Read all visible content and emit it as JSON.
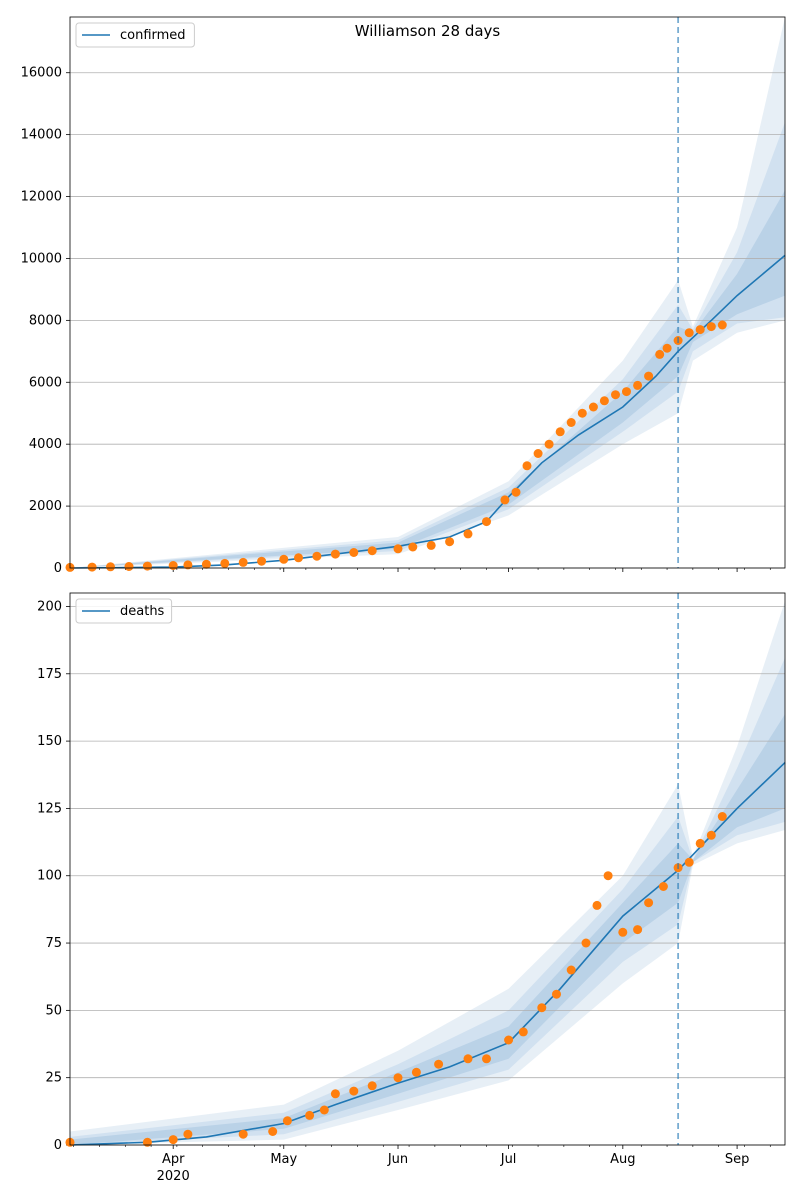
{
  "chart_data": [
    {
      "type": "line",
      "title": "Williamson 28 days",
      "legend": {
        "label": "confirmed",
        "placement": "top-left"
      },
      "ylim": [
        0,
        17800
      ],
      "yticks": [
        0,
        2000,
        4000,
        6000,
        8000,
        10000,
        12000,
        14000,
        16000
      ],
      "xlim": [
        "2020-03-04",
        "2020-09-14"
      ],
      "xticks": [
        {
          "date": "2020-04-01",
          "label": "Apr",
          "sublabel": ""
        },
        {
          "date": "2020-05-01",
          "label": "May",
          "sublabel": ""
        },
        {
          "date": "2020-06-01",
          "label": "Jun",
          "sublabel": ""
        },
        {
          "date": "2020-07-01",
          "label": "Jul",
          "sublabel": ""
        },
        {
          "date": "2020-08-01",
          "label": "Aug",
          "sublabel": ""
        },
        {
          "date": "2020-09-01",
          "label": "Sep",
          "sublabel": ""
        }
      ],
      "vline_date": "2020-08-16",
      "grid": "y",
      "series": [
        {
          "name": "confirmed",
          "color": "#1f77b4",
          "x": [
            "2020-03-04",
            "2020-04-01",
            "2020-04-15",
            "2020-05-01",
            "2020-05-15",
            "2020-06-01",
            "2020-06-15",
            "2020-06-25",
            "2020-07-01",
            "2020-07-10",
            "2020-07-20",
            "2020-08-01",
            "2020-08-10",
            "2020-08-16",
            "2020-08-25",
            "2020-09-01",
            "2020-09-14"
          ],
          "y": [
            0,
            30,
            100,
            250,
            450,
            700,
            1000,
            1500,
            2300,
            3400,
            4300,
            5200,
            6200,
            7000,
            8000,
            8800,
            10100
          ]
        }
      ],
      "bands": [
        {
          "x": [
            "2020-03-04",
            "2020-06-01",
            "2020-07-01",
            "2020-08-01",
            "2020-08-16",
            "2020-08-20",
            "2020-09-01",
            "2020-09-14"
          ],
          "lo": [
            0,
            450,
            1700,
            4000,
            5000,
            6700,
            7600,
            8000
          ],
          "hi": [
            0,
            1000,
            2800,
            6700,
            9300,
            7800,
            11000,
            17800
          ]
        },
        {
          "x": [
            "2020-03-04",
            "2020-06-01",
            "2020-07-01",
            "2020-08-01",
            "2020-08-16",
            "2020-08-20",
            "2020-09-01",
            "2020-09-14"
          ],
          "lo": [
            0,
            550,
            1900,
            4400,
            5700,
            7000,
            7900,
            8100
          ],
          "hi": [
            0,
            900,
            2600,
            6100,
            8500,
            7700,
            10200,
            14400
          ]
        },
        {
          "x": [
            "2020-03-04",
            "2020-06-01",
            "2020-07-01",
            "2020-08-01",
            "2020-08-16",
            "2020-08-20",
            "2020-09-01",
            "2020-09-14"
          ],
          "lo": [
            0,
            620,
            2050,
            4700,
            6200,
            7300,
            8200,
            8800
          ],
          "hi": [
            0,
            820,
            2450,
            5700,
            7800,
            7600,
            9500,
            12200
          ]
        }
      ],
      "observed": {
        "color": "#ff7f0e",
        "x": [
          "2020-03-04",
          "2020-03-10",
          "2020-03-15",
          "2020-03-20",
          "2020-03-25",
          "2020-04-01",
          "2020-04-05",
          "2020-04-10",
          "2020-04-15",
          "2020-04-20",
          "2020-04-25",
          "2020-05-01",
          "2020-05-05",
          "2020-05-10",
          "2020-05-15",
          "2020-05-20",
          "2020-05-25",
          "2020-06-01",
          "2020-06-05",
          "2020-06-10",
          "2020-06-15",
          "2020-06-20",
          "2020-06-25",
          "2020-06-30",
          "2020-07-03",
          "2020-07-06",
          "2020-07-09",
          "2020-07-12",
          "2020-07-15",
          "2020-07-18",
          "2020-07-21",
          "2020-07-24",
          "2020-07-27",
          "2020-07-30",
          "2020-08-02",
          "2020-08-05",
          "2020-08-08",
          "2020-08-11",
          "2020-08-13",
          "2020-08-16",
          "2020-08-19",
          "2020-08-22",
          "2020-08-25",
          "2020-08-28"
        ],
        "y": [
          20,
          30,
          40,
          50,
          60,
          80,
          100,
          120,
          150,
          180,
          220,
          280,
          330,
          380,
          450,
          500,
          560,
          620,
          680,
          730,
          850,
          1100,
          1500,
          2200,
          2450,
          3300,
          3700,
          4000,
          4400,
          4700,
          5000,
          5200,
          5400,
          5600,
          5700,
          5900,
          6200,
          6900,
          7100,
          7350,
          7600,
          7700,
          7800,
          7850
        ]
      }
    },
    {
      "type": "line",
      "title": "",
      "legend": {
        "label": "deaths",
        "placement": "top-left"
      },
      "ylim": [
        0,
        205
      ],
      "yticks": [
        0,
        25,
        50,
        75,
        100,
        125,
        150,
        175,
        200
      ],
      "xlim": [
        "2020-03-04",
        "2020-09-14"
      ],
      "xticks": [
        {
          "date": "2020-04-01",
          "label": "Apr",
          "sublabel": "2020"
        },
        {
          "date": "2020-05-01",
          "label": "May",
          "sublabel": ""
        },
        {
          "date": "2020-06-01",
          "label": "Jun",
          "sublabel": ""
        },
        {
          "date": "2020-07-01",
          "label": "Jul",
          "sublabel": ""
        },
        {
          "date": "2020-08-01",
          "label": "Aug",
          "sublabel": ""
        },
        {
          "date": "2020-09-01",
          "label": "Sep",
          "sublabel": ""
        }
      ],
      "vline_date": "2020-08-16",
      "grid": "y",
      "series": [
        {
          "name": "deaths",
          "color": "#1f77b4",
          "x": [
            "2020-03-04",
            "2020-03-25",
            "2020-04-10",
            "2020-05-01",
            "2020-05-15",
            "2020-06-01",
            "2020-06-15",
            "2020-07-01",
            "2020-07-15",
            "2020-08-01",
            "2020-08-16",
            "2020-09-01",
            "2020-09-14"
          ],
          "y": [
            0,
            1,
            3,
            8,
            15,
            23,
            29,
            38,
            58,
            85,
            102,
            125,
            142
          ]
        }
      ],
      "bands": [
        {
          "x": [
            "2020-03-04",
            "2020-05-01",
            "2020-06-01",
            "2020-07-01",
            "2020-08-01",
            "2020-08-16",
            "2020-08-20",
            "2020-09-01",
            "2020-09-14"
          ],
          "lo": [
            0,
            2,
            13,
            24,
            60,
            75,
            104,
            112,
            117
          ],
          "hi": [
            5,
            15,
            35,
            58,
            100,
            134,
            107,
            148,
            202
          ]
        },
        {
          "x": [
            "2020-03-04",
            "2020-05-01",
            "2020-06-01",
            "2020-07-01",
            "2020-08-01",
            "2020-08-16",
            "2020-08-20",
            "2020-09-01",
            "2020-09-14"
          ],
          "lo": [
            0,
            4,
            16,
            28,
            68,
            82,
            105,
            115,
            120
          ],
          "hi": [
            3,
            12,
            30,
            50,
            95,
            122,
            106,
            140,
            181
          ]
        },
        {
          "x": [
            "2020-03-04",
            "2020-05-01",
            "2020-06-01",
            "2020-07-01",
            "2020-08-01",
            "2020-08-16",
            "2020-08-20",
            "2020-09-01",
            "2020-09-14"
          ],
          "lo": [
            0,
            6,
            19,
            32,
            75,
            90,
            105,
            118,
            125
          ],
          "hi": [
            2,
            10,
            27,
            44,
            90,
            112,
            106,
            132,
            160
          ]
        }
      ],
      "observed": {
        "color": "#ff7f0e",
        "x": [
          "2020-03-04",
          "2020-03-25",
          "2020-04-01",
          "2020-04-05",
          "2020-04-20",
          "2020-04-28",
          "2020-05-02",
          "2020-05-08",
          "2020-05-12",
          "2020-05-15",
          "2020-05-20",
          "2020-05-25",
          "2020-06-01",
          "2020-06-06",
          "2020-06-12",
          "2020-06-20",
          "2020-06-25",
          "2020-07-01",
          "2020-07-05",
          "2020-07-10",
          "2020-07-14",
          "2020-07-18",
          "2020-07-22",
          "2020-07-25",
          "2020-07-28",
          "2020-08-01",
          "2020-08-05",
          "2020-08-08",
          "2020-08-12",
          "2020-08-16",
          "2020-08-19",
          "2020-08-22",
          "2020-08-25",
          "2020-08-28"
        ],
        "y": [
          1,
          1,
          2,
          4,
          4,
          5,
          9,
          11,
          13,
          19,
          20,
          22,
          25,
          27,
          30,
          32,
          32,
          39,
          42,
          51,
          56,
          65,
          75,
          89,
          100,
          79,
          80,
          90,
          96,
          103,
          105,
          112,
          115,
          122
        ]
      }
    }
  ]
}
